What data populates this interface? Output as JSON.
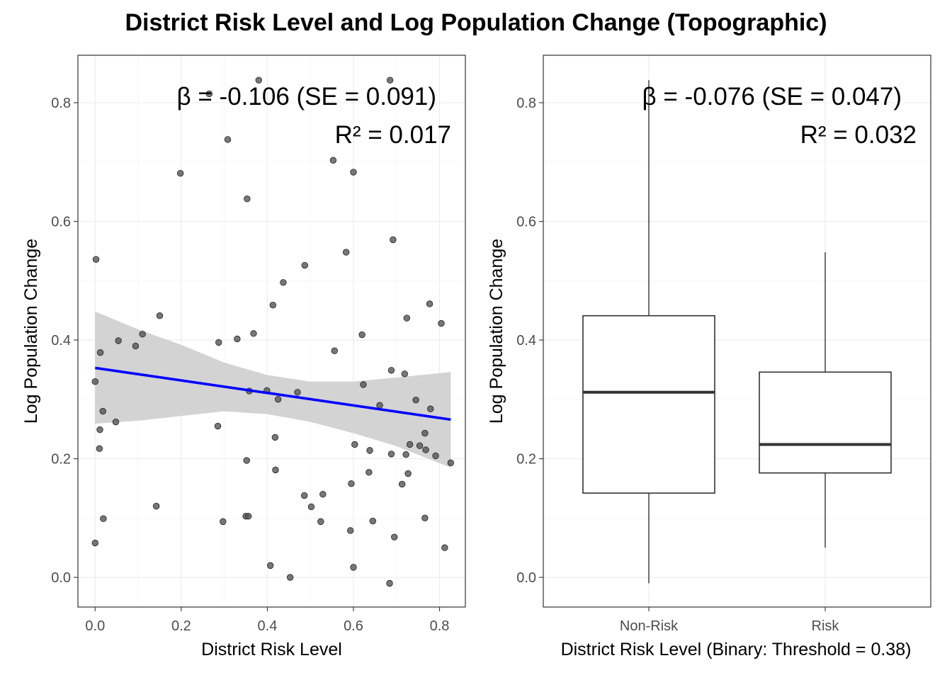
{
  "title": "District Risk Level and Log Population Change (Topographic)",
  "chart_data": [
    {
      "type": "scatter",
      "xlabel": "District Risk Level",
      "ylabel": "Log Population Change",
      "xlim": [
        -0.04,
        0.86
      ],
      "ylim": [
        -0.05,
        0.88
      ],
      "x_ticks": [
        "0.0",
        "0.2",
        "0.4",
        "0.6",
        "0.8"
      ],
      "x_tick_values": [
        0,
        0.2,
        0.4,
        0.6,
        0.8
      ],
      "y_ticks": [
        "0.0",
        "0.2",
        "0.4",
        "0.6",
        "0.8"
      ],
      "y_tick_values": [
        0,
        0.2,
        0.4,
        0.6,
        0.8
      ],
      "grid": true,
      "annotation_beta": "β = -0.106 (SE = 0.091)",
      "annotation_r2": "R² = 0.017",
      "point_color": "#555555",
      "fit_color": "#0000ff",
      "band_color": "#d3d3d3",
      "fit_line": {
        "x": [
          0.0,
          0.826
        ],
        "y": [
          0.353,
          0.266
        ]
      },
      "confidence_band": {
        "x": [
          0.0,
          0.1,
          0.2,
          0.3,
          0.4,
          0.5,
          0.6,
          0.7,
          0.826
        ],
        "lower": [
          0.259,
          0.264,
          0.272,
          0.28,
          0.275,
          0.262,
          0.243,
          0.221,
          0.185
        ],
        "upper": [
          0.448,
          0.418,
          0.392,
          0.362,
          0.341,
          0.33,
          0.33,
          0.337,
          0.346
        ]
      },
      "points": [
        [
          0.0,
          0.33
        ],
        [
          0.002,
          0.536
        ],
        [
          0.0,
          0.058
        ],
        [
          0.01,
          0.217
        ],
        [
          0.011,
          0.249
        ],
        [
          0.012,
          0.379
        ],
        [
          0.018,
          0.28
        ],
        [
          0.019,
          0.099
        ],
        [
          0.048,
          0.262
        ],
        [
          0.054,
          0.399
        ],
        [
          0.094,
          0.39
        ],
        [
          0.11,
          0.41
        ],
        [
          0.142,
          0.12
        ],
        [
          0.15,
          0.441
        ],
        [
          0.198,
          0.681
        ],
        [
          0.265,
          0.815
        ],
        [
          0.285,
          0.255
        ],
        [
          0.287,
          0.396
        ],
        [
          0.297,
          0.094
        ],
        [
          0.308,
          0.738
        ],
        [
          0.33,
          0.402
        ],
        [
          0.35,
          0.103
        ],
        [
          0.352,
          0.197
        ],
        [
          0.353,
          0.638
        ],
        [
          0.356,
          0.103
        ],
        [
          0.358,
          0.314
        ],
        [
          0.368,
          0.411
        ],
        [
          0.38,
          0.838
        ],
        [
          0.399,
          0.315
        ],
        [
          0.407,
          0.02
        ],
        [
          0.413,
          0.459
        ],
        [
          0.418,
          0.236
        ],
        [
          0.419,
          0.181
        ],
        [
          0.425,
          0.3
        ],
        [
          0.437,
          0.497
        ],
        [
          0.453,
          0.0
        ],
        [
          0.47,
          0.312
        ],
        [
          0.486,
          0.138
        ],
        [
          0.487,
          0.526
        ],
        [
          0.502,
          0.119
        ],
        [
          0.524,
          0.094
        ],
        [
          0.529,
          0.14
        ],
        [
          0.553,
          0.703
        ],
        [
          0.556,
          0.382
        ],
        [
          0.583,
          0.548
        ],
        [
          0.593,
          0.079
        ],
        [
          0.595,
          0.158
        ],
        [
          0.6,
          0.017
        ],
        [
          0.6,
          0.683
        ],
        [
          0.603,
          0.224
        ],
        [
          0.62,
          0.409
        ],
        [
          0.623,
          0.325
        ],
        [
          0.638,
          0.214
        ],
        [
          0.636,
          0.177
        ],
        [
          0.645,
          0.095
        ],
        [
          0.661,
          0.29
        ],
        [
          0.684,
          -0.01
        ],
        [
          0.685,
          0.838
        ],
        [
          0.688,
          0.349
        ],
        [
          0.688,
          0.208
        ],
        [
          0.692,
          0.569
        ],
        [
          0.695,
          0.068
        ],
        [
          0.713,
          0.157
        ],
        [
          0.719,
          0.343
        ],
        [
          0.722,
          0.207
        ],
        [
          0.724,
          0.437
        ],
        [
          0.727,
          0.175
        ],
        [
          0.731,
          0.224
        ],
        [
          0.745,
          0.299
        ],
        [
          0.754,
          0.222
        ],
        [
          0.766,
          0.243
        ],
        [
          0.766,
          0.1
        ],
        [
          0.768,
          0.215
        ],
        [
          0.777,
          0.461
        ],
        [
          0.779,
          0.284
        ],
        [
          0.791,
          0.205
        ],
        [
          0.804,
          0.428
        ],
        [
          0.812,
          0.05
        ],
        [
          0.826,
          0.193
        ]
      ]
    },
    {
      "type": "box",
      "xlabel": "District Risk Level (Binary: Threshold = 0.38)",
      "ylabel": "Log Population Change",
      "ylim": [
        -0.05,
        0.88
      ],
      "y_ticks": [
        "0.0",
        "0.2",
        "0.4",
        "0.6",
        "0.8"
      ],
      "y_tick_values": [
        0,
        0.2,
        0.4,
        0.6,
        0.8
      ],
      "grid": true,
      "annotation_beta": "β = -0.076 (SE = 0.047)",
      "annotation_r2": "R² = 0.032",
      "categories": [
        "Non-Risk",
        "Risk"
      ],
      "boxes": [
        {
          "min": -0.01,
          "q1": 0.142,
          "median": 0.312,
          "q3": 0.441,
          "max": 0.838
        },
        {
          "min": 0.05,
          "q1": 0.176,
          "median": 0.224,
          "q3": 0.346,
          "max": 0.548
        }
      ]
    }
  ]
}
